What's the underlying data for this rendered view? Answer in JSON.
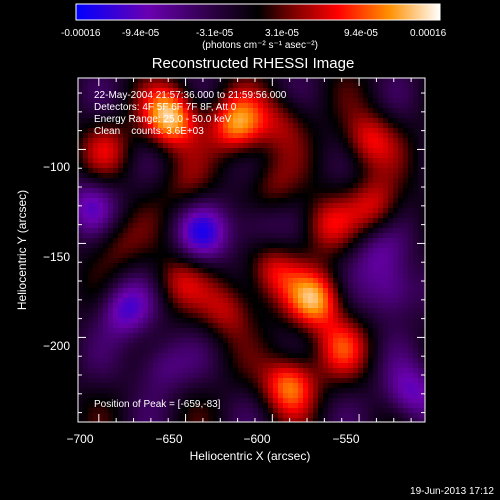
{
  "chart_data": {
    "type": "heatmap",
    "title": "Reconstructed RHESSI Image",
    "colorbar": {
      "min": -0.00016,
      "max": 0.00016,
      "tick_labels": [
        "-0.00016",
        "-9.4e-05",
        "-3.1e-05",
        "3.1e-05",
        "9.4e-05",
        "0.00016"
      ],
      "unit_label": "(photons cm⁻² s⁻¹ asec⁻²)",
      "colormap": [
        "#0000ff",
        "#6a00b0",
        "#2a0040",
        "#000000",
        "#800000",
        "#ff0000",
        "#ff9000",
        "#ffffff"
      ]
    },
    "xlabel": "Heliocentric X (arcsec)",
    "ylabel": "Heliocentric Y (arcsec)",
    "xlim": [
      -712,
      -512
    ],
    "ylim": [
      -245,
      -62
    ],
    "x_ticks": [
      -700,
      -650,
      -600,
      -550
    ],
    "y_ticks": [
      -100,
      -150,
      -200
    ],
    "x_tick_labels": [
      "−700",
      "−650",
      "−600",
      "−550"
    ],
    "y_tick_labels": [
      "−100",
      "−150",
      "−200"
    ],
    "annotations": [
      "22-May-2004 21:57:36.000 to 21:59:56.000",
      "Detectors: 4F 5F 6F 7F 8F, Att 0",
      "Energy Range: 25.0 - 50.0 keV",
      "Clean    counts: 3.6E+03"
    ],
    "peak_label": "Position of Peak = [-659,-83]",
    "peak": [
      -659,
      -83
    ],
    "sources": [
      {
        "x": -659,
        "y": -83,
        "amp": 1.0
      },
      {
        "x": -620,
        "y": -87,
        "amp": 0.85
      },
      {
        "x": -595,
        "y": -85,
        "amp": 0.35
      },
      {
        "x": -545,
        "y": -95,
        "amp": 0.55
      },
      {
        "x": -540,
        "y": -130,
        "amp": 0.5
      },
      {
        "x": -570,
        "y": -140,
        "amp": 0.45
      },
      {
        "x": -600,
        "y": -165,
        "amp": 0.5
      },
      {
        "x": -575,
        "y": -180,
        "amp": 0.85
      },
      {
        "x": -560,
        "y": -205,
        "amp": 0.5
      },
      {
        "x": -590,
        "y": -225,
        "amp": 0.8
      },
      {
        "x": -625,
        "y": -185,
        "amp": 0.45
      },
      {
        "x": -655,
        "y": -170,
        "amp": 0.4
      },
      {
        "x": -690,
        "y": -150,
        "amp": 0.3
      },
      {
        "x": -650,
        "y": -120,
        "amp": 0.25
      },
      {
        "x": -600,
        "y": -120,
        "amp": 0.3
      },
      {
        "x": -695,
        "y": -100,
        "amp": 0.35
      },
      {
        "x": -685,
        "y": -185,
        "amp": -0.6
      },
      {
        "x": -640,
        "y": -145,
        "amp": -0.6
      },
      {
        "x": -705,
        "y": -130,
        "amp": -0.45
      },
      {
        "x": -530,
        "y": -175,
        "amp": -0.5
      },
      {
        "x": -520,
        "y": -230,
        "amp": -0.55
      },
      {
        "x": -665,
        "y": -215,
        "amp": -0.4
      },
      {
        "x": -610,
        "y": -140,
        "amp": -0.35
      },
      {
        "x": -540,
        "y": -155,
        "amp": -0.35
      }
    ]
  },
  "footer_date": "19-Jun-2013 17:12"
}
